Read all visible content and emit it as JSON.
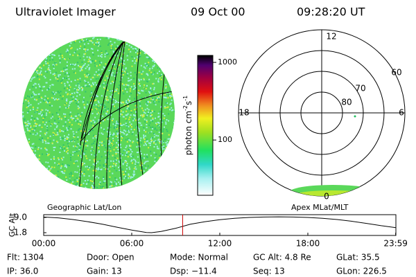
{
  "header": {
    "instrument": "Ultraviolet Imager",
    "date": "09 Oct 00",
    "time": "09:28:20 UT"
  },
  "colorbar": {
    "label": "photon cm",
    "exp1": "-2",
    "unit2": "s",
    "exp2": "-1",
    "lim": [
      19.4,
      1230
    ],
    "log": true,
    "ticks": [
      {
        "value": 1000,
        "label": "1000"
      },
      {
        "value": 100,
        "label": "100"
      }
    ]
  },
  "polar": {
    "hours": [
      "12",
      "18",
      "6",
      "0"
    ],
    "rings": [
      "60",
      "70",
      "80"
    ]
  },
  "chart_data": {
    "type": "line",
    "ylabel": "GC Alt",
    "left_label": "Geographic Lat/Lon",
    "right_label": "Apex MLat/MLT",
    "x": [
      0,
      1,
      2,
      3,
      4,
      5,
      6,
      7,
      7.35,
      8,
      9,
      10,
      11,
      12,
      13,
      14,
      15,
      16,
      17,
      18,
      19,
      20,
      21,
      22,
      23,
      24
    ],
    "values": [
      9.2,
      8.8,
      8.0,
      7.0,
      5.8,
      4.4,
      3.0,
      1.9,
      1.8,
      2.4,
      3.9,
      5.8,
      7.0,
      7.9,
      8.6,
      9.0,
      9.2,
      9.3,
      9.2,
      9.0,
      8.6,
      8.0,
      7.2,
      6.2,
      5.1,
      4.2
    ],
    "color": "#000000",
    "cursor_x": 9.47,
    "cursor_color": "#cc0000",
    "xlim": [
      0,
      24
    ],
    "ylim": [
      0.5,
      10.3
    ],
    "xticks": [
      {
        "value": 0,
        "label": "00:00"
      },
      {
        "value": 6,
        "label": "06:00"
      },
      {
        "value": 12,
        "label": "12:00"
      },
      {
        "value": 18,
        "label": "18:00"
      },
      {
        "value": 23.983,
        "label": "23:59"
      }
    ],
    "yticks": [
      {
        "value": 9.0,
        "label": "9.0"
      },
      1.8
    ]
  },
  "status": {
    "rows": [
      [
        "Flt: 1304",
        "Door: Open",
        "Mode: Normal",
        "GC Alt: 4.8 Re",
        "GLat: 35.5"
      ],
      [
        "IP: 36.0",
        "Gain: 13",
        "Dsp: −11.4",
        "Seq: 13",
        "GLon: 226.5"
      ]
    ]
  }
}
